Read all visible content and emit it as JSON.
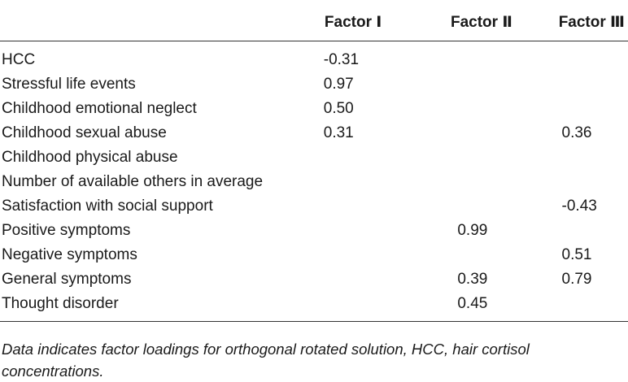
{
  "table": {
    "headers": [
      "",
      "Factor Ⅰ",
      "Factor Ⅱ",
      "Factor Ⅲ"
    ],
    "rows": [
      {
        "label": "HCC",
        "f1": "-0.31",
        "f2": "",
        "f3": ""
      },
      {
        "label": "Stressful life events",
        "f1": "0.97",
        "f2": "",
        "f3": ""
      },
      {
        "label": "Childhood emotional neglect",
        "f1": "0.50",
        "f2": "",
        "f3": ""
      },
      {
        "label": "Childhood sexual abuse",
        "f1": "0.31",
        "f2": "",
        "f3": "0.36"
      },
      {
        "label": "Childhood physical abuse",
        "f1": "",
        "f2": "",
        "f3": ""
      },
      {
        "label": "Number of available others in average",
        "f1": "",
        "f2": "",
        "f3": ""
      },
      {
        "label": "Satisfaction with social support",
        "f1": "",
        "f2": "",
        "f3": "-0.43"
      },
      {
        "label": "Positive symptoms",
        "f1": "",
        "f2": "0.99",
        "f3": ""
      },
      {
        "label": "Negative symptoms",
        "f1": "",
        "f2": "",
        "f3": "0.51"
      },
      {
        "label": "General symptoms",
        "f1": "",
        "f2": "0.39",
        "f3": "0.79"
      },
      {
        "label": "Thought disorder",
        "f1": "",
        "f2": "0.45",
        "f3": ""
      }
    ]
  },
  "footnote": "Data indicates factor loadings for orthogonal rotated solution, HCC, hair cortisol concentrations."
}
